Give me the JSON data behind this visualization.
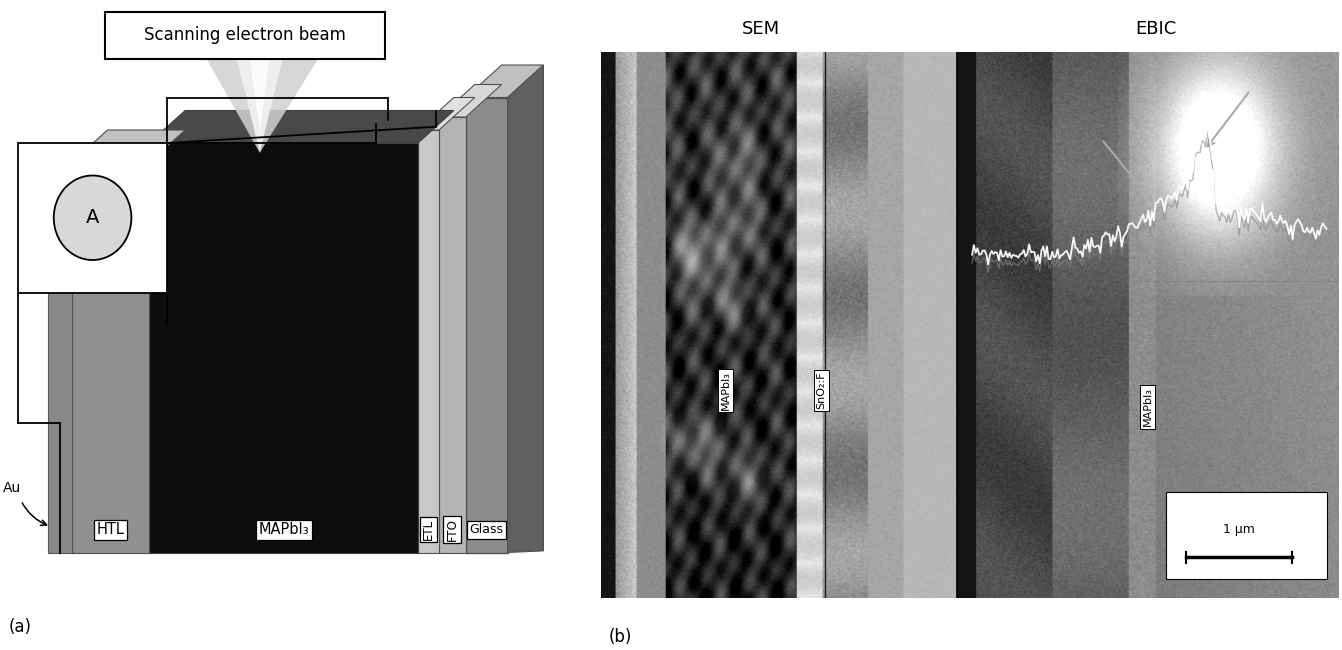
{
  "fig_width": 13.42,
  "fig_height": 6.5,
  "bg_color": "#ffffff",
  "label_a": "(a)",
  "label_b": "(b)",
  "sem_title": "SEM",
  "ebic_title": "EBIC",
  "beam_label": "Scanning electron beam",
  "au_label": "Au",
  "htl_label": "HTL",
  "mapbi3_label": "MAPbI₃",
  "etl_label": "ETL",
  "fto_label": "FTO",
  "glass_label": "Glass",
  "sem_mapbi3_label": "MAPbI₃",
  "sem_sno2_label": "SnO₂:F",
  "ebic_mapbi3_label": "MAPbI₃",
  "scale_label": "1 μm",
  "colors": {
    "au": "#888888",
    "au_top": "#aaaaaa",
    "htl_front": "#8c8c8c",
    "htl_top": "#b0b0b0",
    "pero_front": "#0a0a0a",
    "pero_top": "#3c3c3c",
    "etl_front": "#c0c0c0",
    "etl_top": "#d8d8d8",
    "fto_front": "#b0b0b0",
    "fto_top": "#cccccc",
    "glass_front": "#989898",
    "glass_top": "#c4c4c4",
    "glass_right": "#707070"
  }
}
